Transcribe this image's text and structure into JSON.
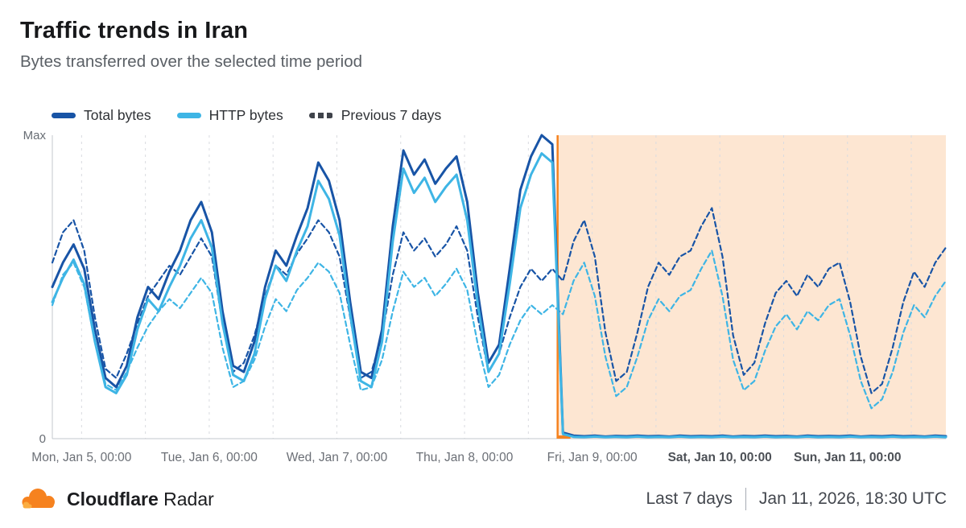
{
  "page": {
    "title": "Traffic trends in Iran",
    "subtitle": "Bytes transferred over the selected time period"
  },
  "legend": [
    {
      "label": "Total bytes",
      "color": "#1854a6",
      "style": "solid"
    },
    {
      "label": "HTTP bytes",
      "color": "#3eb5e5",
      "style": "solid"
    },
    {
      "label": "Previous 7 days",
      "color": "#3f434b",
      "style": "dashed"
    }
  ],
  "footer": {
    "brand_bold": "Cloudflare",
    "brand_regular": "Radar",
    "time_range": "Last 7 days",
    "timestamp": "Jan 11, 2026, 18:30 UTC"
  },
  "chart_data": {
    "type": "line",
    "title": "Traffic trends in Iran",
    "ylabel_top": "Max",
    "ylabel_bottom": "0",
    "ylim": [
      0,
      1
    ],
    "x_range_hours": 168,
    "values_step_hours": 2,
    "gridline_start_hour": 5.5,
    "gridline_every_hours": 12,
    "x_ticks": [
      {
        "label": "Mon, Jan 5, 00:00",
        "hour": 5.5,
        "weekend": false
      },
      {
        "label": "Tue, Jan 6, 00:00",
        "hour": 29.5,
        "weekend": false
      },
      {
        "label": "Wed, Jan 7, 00:00",
        "hour": 53.5,
        "weekend": false
      },
      {
        "label": "Thu, Jan 8, 00:00",
        "hour": 77.5,
        "weekend": false
      },
      {
        "label": "Fri, Jan 9, 00:00",
        "hour": 101.5,
        "weekend": false
      },
      {
        "label": "Sat, Jan 10, 00:00",
        "hour": 125.5,
        "weekend": true
      },
      {
        "label": "Sun, Jan 11, 00:00",
        "hour": 149.5,
        "weekend": true
      }
    ],
    "anomaly_region": {
      "start_hour": 95,
      "end_hour": 168,
      "fill": "#f6821f",
      "opacity": 0.2,
      "border": "#f6821f"
    },
    "render_order": [
      3,
      2,
      0,
      1
    ],
    "series": [
      {
        "name": "Total bytes",
        "color": "#1854a6",
        "dash": null,
        "width": 3,
        "values": [
          0.5,
          0.58,
          0.64,
          0.56,
          0.36,
          0.2,
          0.17,
          0.24,
          0.4,
          0.5,
          0.46,
          0.55,
          0.62,
          0.72,
          0.78,
          0.68,
          0.42,
          0.24,
          0.22,
          0.32,
          0.5,
          0.62,
          0.57,
          0.67,
          0.76,
          0.91,
          0.85,
          0.72,
          0.45,
          0.22,
          0.2,
          0.36,
          0.7,
          0.95,
          0.87,
          0.92,
          0.84,
          0.89,
          0.93,
          0.78,
          0.48,
          0.25,
          0.31,
          0.56,
          0.82,
          0.93,
          1.0,
          0.97,
          0.02,
          0.01,
          0.008,
          0.01,
          0.007,
          0.009,
          0.008,
          0.01,
          0.008,
          0.009,
          0.007,
          0.01,
          0.008,
          0.009,
          0.008,
          0.01,
          0.007,
          0.009,
          0.008,
          0.01,
          0.008,
          0.009,
          0.007,
          0.01,
          0.008,
          0.009,
          0.008,
          0.01,
          0.007,
          0.009,
          0.008,
          0.01,
          0.008,
          0.009,
          0.007,
          0.01,
          0.008
        ]
      },
      {
        "name": "HTTP bytes",
        "color": "#3eb5e5",
        "dash": null,
        "width": 3,
        "values": [
          0.45,
          0.53,
          0.59,
          0.51,
          0.32,
          0.17,
          0.15,
          0.21,
          0.36,
          0.46,
          0.42,
          0.5,
          0.57,
          0.66,
          0.72,
          0.63,
          0.38,
          0.21,
          0.19,
          0.28,
          0.46,
          0.57,
          0.52,
          0.62,
          0.7,
          0.85,
          0.79,
          0.67,
          0.41,
          0.19,
          0.17,
          0.32,
          0.65,
          0.89,
          0.81,
          0.86,
          0.78,
          0.83,
          0.87,
          0.72,
          0.44,
          0.22,
          0.28,
          0.51,
          0.76,
          0.87,
          0.94,
          0.91,
          0.015,
          0.006,
          0.005,
          0.007,
          0.005,
          0.006,
          0.005,
          0.007,
          0.005,
          0.006,
          0.005,
          0.007,
          0.005,
          0.006,
          0.005,
          0.007,
          0.005,
          0.006,
          0.005,
          0.007,
          0.005,
          0.006,
          0.005,
          0.007,
          0.005,
          0.006,
          0.005,
          0.007,
          0.005,
          0.006,
          0.005,
          0.007,
          0.005,
          0.006,
          0.005,
          0.007,
          0.005
        ]
      },
      {
        "name": "Total bytes (previous 7 days)",
        "color": "#1854a6",
        "dash": "6 4",
        "width": 2.2,
        "values": [
          0.58,
          0.68,
          0.72,
          0.62,
          0.4,
          0.23,
          0.2,
          0.28,
          0.38,
          0.47,
          0.52,
          0.57,
          0.54,
          0.6,
          0.66,
          0.6,
          0.38,
          0.22,
          0.25,
          0.34,
          0.47,
          0.57,
          0.54,
          0.61,
          0.66,
          0.72,
          0.68,
          0.6,
          0.4,
          0.2,
          0.22,
          0.34,
          0.54,
          0.68,
          0.62,
          0.66,
          0.6,
          0.64,
          0.7,
          0.62,
          0.4,
          0.22,
          0.28,
          0.4,
          0.5,
          0.56,
          0.52,
          0.56,
          0.52,
          0.65,
          0.72,
          0.6,
          0.35,
          0.19,
          0.22,
          0.35,
          0.5,
          0.58,
          0.54,
          0.6,
          0.62,
          0.7,
          0.76,
          0.6,
          0.34,
          0.21,
          0.25,
          0.38,
          0.48,
          0.52,
          0.47,
          0.54,
          0.5,
          0.56,
          0.58,
          0.45,
          0.27,
          0.15,
          0.18,
          0.3,
          0.45,
          0.55,
          0.5,
          0.58,
          0.63
        ]
      },
      {
        "name": "HTTP bytes (previous 7 days)",
        "color": "#3eb5e5",
        "dash": "6 4",
        "width": 2.2,
        "values": [
          0.44,
          0.54,
          0.58,
          0.5,
          0.32,
          0.18,
          0.16,
          0.22,
          0.3,
          0.37,
          0.42,
          0.46,
          0.43,
          0.48,
          0.53,
          0.48,
          0.3,
          0.17,
          0.19,
          0.26,
          0.37,
          0.46,
          0.42,
          0.49,
          0.53,
          0.58,
          0.55,
          0.48,
          0.31,
          0.16,
          0.17,
          0.26,
          0.42,
          0.55,
          0.5,
          0.53,
          0.47,
          0.51,
          0.56,
          0.49,
          0.31,
          0.17,
          0.21,
          0.31,
          0.39,
          0.44,
          0.41,
          0.44,
          0.41,
          0.52,
          0.58,
          0.47,
          0.27,
          0.14,
          0.17,
          0.27,
          0.39,
          0.46,
          0.42,
          0.47,
          0.49,
          0.56,
          0.62,
          0.47,
          0.26,
          0.16,
          0.19,
          0.29,
          0.37,
          0.41,
          0.36,
          0.42,
          0.39,
          0.44,
          0.46,
          0.34,
          0.19,
          0.1,
          0.13,
          0.22,
          0.35,
          0.44,
          0.4,
          0.47,
          0.52
        ]
      }
    ]
  }
}
